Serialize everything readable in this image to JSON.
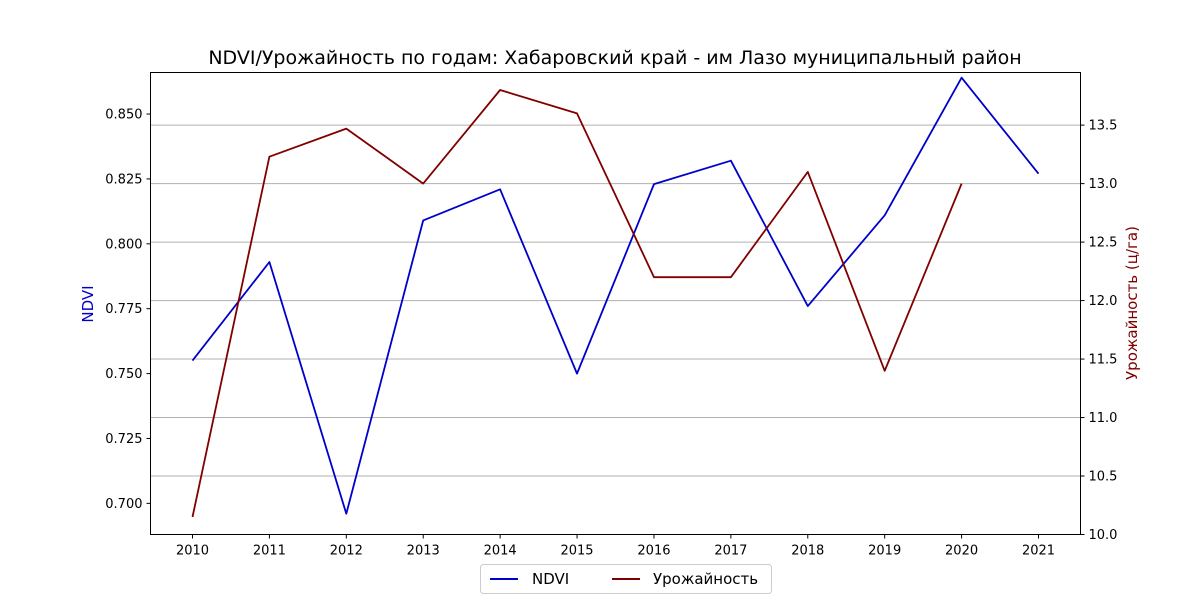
{
  "chart_data": {
    "type": "line",
    "title": "NDVI/Урожайность по годам: Хабаровский край - им Лазо муниципальный район",
    "x": [
      "2010",
      "2011",
      "2012",
      "2013",
      "2014",
      "2015",
      "2016",
      "2017",
      "2018",
      "2019",
      "2020",
      "2021"
    ],
    "left_axis": {
      "label": "NDVI",
      "color": "#0000cc",
      "ylim": [
        0.688,
        0.866
      ],
      "ticks": [
        "0.700",
        "0.725",
        "0.750",
        "0.775",
        "0.800",
        "0.825",
        "0.850"
      ]
    },
    "right_axis": {
      "label": "Урожайность (ц/га)",
      "color": "#800000",
      "ylim": [
        10.0,
        13.95
      ],
      "ticks": [
        "10.0",
        "10.5",
        "11.0",
        "11.5",
        "12.0",
        "12.5",
        "13.0",
        "13.5"
      ]
    },
    "grid": "horizontal, right axis",
    "legend_placement": "bottom-center",
    "series": [
      {
        "name": "NDVI",
        "axis": "left",
        "color": "#0000cc",
        "values": [
          0.755,
          0.793,
          0.696,
          0.809,
          0.821,
          0.75,
          0.823,
          0.832,
          0.776,
          0.811,
          0.864,
          0.827
        ]
      },
      {
        "name": "Урожайность",
        "axis": "right",
        "color": "#800000",
        "values": [
          10.15,
          13.23,
          13.47,
          13.0,
          13.8,
          13.6,
          12.2,
          12.2,
          13.1,
          11.4,
          13.0,
          null
        ]
      }
    ]
  }
}
